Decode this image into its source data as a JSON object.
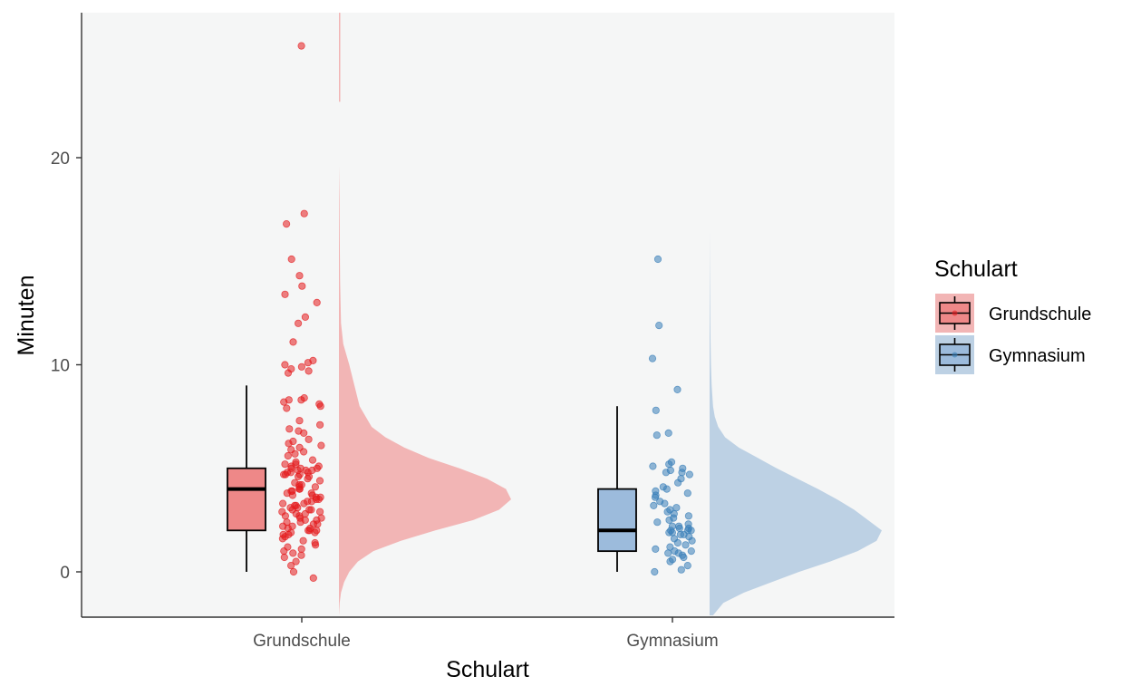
{
  "chart_data": {
    "type": "raincloud",
    "xlabel": "Schulart",
    "ylabel": "Minuten",
    "categories": [
      "Grundschule",
      "Gymnasium"
    ],
    "ylim": [
      -2.1,
      27
    ],
    "yticks": [
      0,
      10,
      20
    ],
    "ytick_labels": [
      "0",
      "10",
      "20"
    ],
    "legend": {
      "title": "Schulart",
      "position": "right",
      "entries": [
        "Grundschule",
        "Gymnasium"
      ]
    },
    "colors": {
      "Grundschule": {
        "box": "#ee8888",
        "point": "#e41a1c",
        "density": "#f2b5b5"
      },
      "Gymnasium": {
        "box": "#9cbbdc",
        "point": "#377eb8",
        "density": "#bdd1e4"
      },
      "panel": "#f5f6f6"
    },
    "series": [
      {
        "name": "Grundschule",
        "box": {
          "min": 0,
          "q1": 2,
          "median": 4,
          "q3": 5,
          "max": 9
        },
        "density": {
          "y": [
            -2.1,
            -1.5,
            -1,
            -0.5,
            0,
            0.5,
            1,
            1.5,
            2,
            2.5,
            3,
            3.5,
            4,
            4.5,
            5,
            5.5,
            6,
            6.5,
            7,
            8,
            9,
            10,
            11,
            12,
            14,
            16,
            18,
            19.6
          ],
          "density": [
            0,
            0.004,
            0.012,
            0.03,
            0.06,
            0.11,
            0.2,
            0.36,
            0.56,
            0.78,
            0.93,
            1.0,
            0.97,
            0.86,
            0.7,
            0.52,
            0.38,
            0.27,
            0.19,
            0.12,
            0.09,
            0.06,
            0.025,
            0.012,
            0.007,
            0.005,
            0.003,
            0
          ]
        },
        "density_upper": {
          "y": [
            22.7,
            27
          ],
          "density": 0.003
        },
        "points": [
          25.4,
          17.3,
          16.8,
          15.1,
          14.3,
          13.8,
          13.4,
          13.0,
          12.3,
          12.0,
          11.1,
          10.2,
          10.1,
          10.0,
          9.9,
          9.8,
          9.7,
          9.6,
          8.4,
          8.3,
          8.3,
          8.2,
          8.1,
          8.0,
          7.9,
          7.3,
          7.1,
          6.9,
          6.8,
          6.7,
          6.4,
          6.3,
          6.2,
          6.1,
          6.0,
          5.9,
          5.8,
          5.7,
          5.6,
          5.4,
          5.3,
          5.2,
          5.2,
          5.1,
          5.1,
          5.0,
          5.0,
          5.0,
          4.9,
          4.9,
          4.9,
          4.8,
          4.8,
          4.8,
          4.7,
          4.7,
          4.7,
          4.6,
          4.6,
          4.5,
          4.4,
          4.3,
          4.2,
          4.2,
          4.1,
          4.1,
          4.0,
          4.0,
          3.9,
          3.9,
          3.8,
          3.8,
          3.7,
          3.7,
          3.6,
          3.6,
          3.5,
          3.5,
          3.4,
          3.4,
          3.3,
          3.3,
          3.2,
          3.2,
          3.1,
          3.1,
          3.0,
          3.0,
          3.0,
          2.9,
          2.9,
          2.8,
          2.8,
          2.7,
          2.7,
          2.6,
          2.6,
          2.5,
          2.5,
          2.4,
          2.4,
          2.3,
          2.3,
          2.2,
          2.2,
          2.1,
          2.1,
          2.0,
          2.0,
          2.0,
          1.9,
          1.9,
          1.8,
          1.8,
          1.7,
          1.6,
          1.5,
          1.4,
          1.3,
          1.2,
          1.1,
          1.0,
          0.9,
          0.8,
          0.7,
          0.5,
          0.3,
          0.0,
          -0.3
        ]
      },
      {
        "name": "Gymnasium",
        "box": {
          "min": 0,
          "q1": 1,
          "median": 2,
          "q3": 4,
          "max": 8
        },
        "density": {
          "y": [
            -2.1,
            -1.5,
            -1,
            -0.5,
            0,
            0.5,
            1,
            1.5,
            2,
            2.5,
            3,
            3.5,
            4,
            4.5,
            5,
            5.5,
            6,
            6.5,
            7,
            7.5,
            8,
            9,
            10,
            11,
            12,
            13,
            14,
            15,
            16.6
          ],
          "density": [
            0.02,
            0.08,
            0.2,
            0.36,
            0.52,
            0.7,
            0.86,
            0.97,
            1.0,
            0.92,
            0.84,
            0.74,
            0.63,
            0.51,
            0.39,
            0.28,
            0.17,
            0.09,
            0.05,
            0.03,
            0.02,
            0.012,
            0.008,
            0.006,
            0.004,
            0.003,
            0.002,
            0.001,
            0
          ]
        },
        "points": [
          15.1,
          11.9,
          10.3,
          8.8,
          7.8,
          6.7,
          6.6,
          5.3,
          5.2,
          5.1,
          5.0,
          4.9,
          4.8,
          4.8,
          4.7,
          4.5,
          4.3,
          4.1,
          4.0,
          3.9,
          3.8,
          3.7,
          3.6,
          3.4,
          3.3,
          3.2,
          3.1,
          3.0,
          2.9,
          2.8,
          2.7,
          2.6,
          2.5,
          2.4,
          2.3,
          2.2,
          2.2,
          2.1,
          2.1,
          2.0,
          2.0,
          2.0,
          1.9,
          1.9,
          1.8,
          1.8,
          1.7,
          1.6,
          1.5,
          1.4,
          1.3,
          1.2,
          1.1,
          1.0,
          1.0,
          0.9,
          0.9,
          0.8,
          0.7,
          0.6,
          0.5,
          0.3,
          0.1,
          0.0
        ]
      }
    ]
  }
}
